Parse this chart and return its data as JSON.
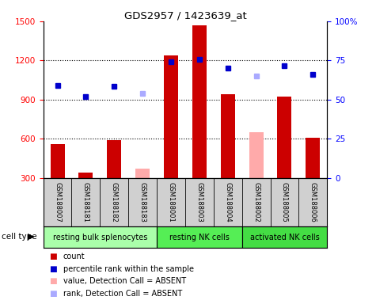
{
  "title": "GDS2957 / 1423639_at",
  "samples": [
    "GSM188007",
    "GSM188181",
    "GSM188182",
    "GSM188183",
    "GSM188001",
    "GSM188003",
    "GSM188004",
    "GSM188002",
    "GSM188005",
    "GSM188006"
  ],
  "groups": [
    {
      "name": "resting bulk splenocytes",
      "indices": [
        0,
        1,
        2,
        3
      ],
      "color": "#aaffaa"
    },
    {
      "name": "resting NK cells",
      "indices": [
        4,
        5,
        6
      ],
      "color": "#55ee55"
    },
    {
      "name": "activated NK cells",
      "indices": [
        7,
        8,
        9
      ],
      "color": "#44dd44"
    }
  ],
  "count_values": [
    560,
    340,
    590,
    null,
    1240,
    1470,
    940,
    null,
    920,
    610
  ],
  "count_absent_values": [
    null,
    null,
    null,
    370,
    null,
    null,
    null,
    650,
    null,
    null
  ],
  "rank_values": [
    1010,
    920,
    1000,
    null,
    1190,
    1210,
    1140,
    null,
    1160,
    1090
  ],
  "rank_absent_values": [
    null,
    null,
    null,
    950,
    null,
    null,
    null,
    1080,
    null,
    null
  ],
  "ylim_left": [
    300,
    1500
  ],
  "ylim_right": [
    0,
    100
  ],
  "yticks_left": [
    300,
    600,
    900,
    1200,
    1500
  ],
  "yticks_right": [
    0,
    25,
    50,
    75,
    100
  ],
  "bar_color": "#cc0000",
  "absent_bar_color": "#ffaaaa",
  "rank_color": "#0000cc",
  "rank_absent_color": "#aaaaff",
  "bg_color": "#d0d0d0"
}
